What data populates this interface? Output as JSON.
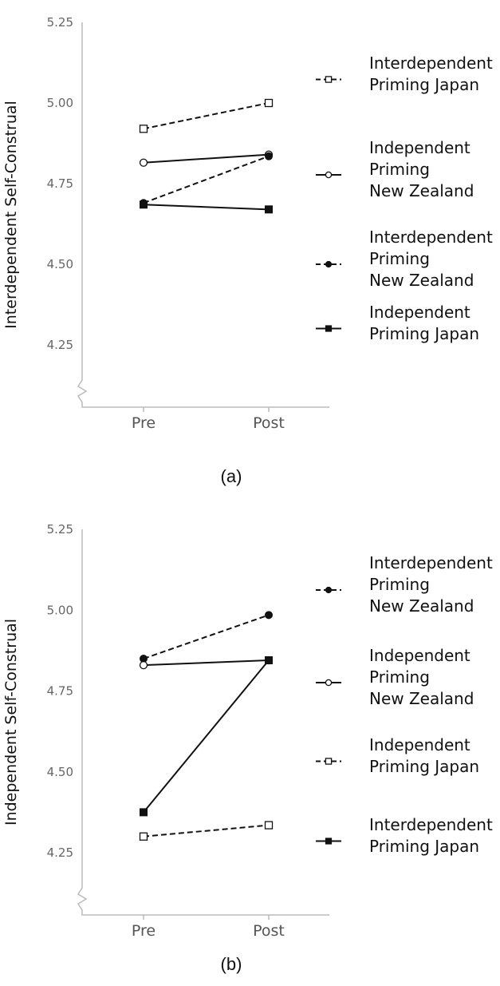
{
  "chart_data": [
    {
      "type": "line",
      "caption": "(a)",
      "ylabel": "Interdependent Self-Construal",
      "xlabel": "",
      "categories": [
        "Pre",
        "Post"
      ],
      "yticks": [
        "5.25",
        "5.00",
        "4.75",
        "4.50",
        "4.25"
      ],
      "ylim": [
        4.1,
        5.25
      ],
      "axis_break": true,
      "grid": false,
      "legend_position": "right",
      "series": [
        {
          "name": "Interdependent\nPriming Japan",
          "values": [
            4.92,
            5.0
          ],
          "dash": true,
          "marker": "square-open"
        },
        {
          "name": "Independent\nPriming\nNew Zealand",
          "values": [
            4.815,
            4.84
          ],
          "dash": false,
          "marker": "circle-open"
        },
        {
          "name": "Interdependent\nPriming\nNew Zealand",
          "values": [
            4.69,
            4.835
          ],
          "dash": true,
          "marker": "circle-filled"
        },
        {
          "name": "Independent\nPriming Japan",
          "values": [
            4.685,
            4.67
          ],
          "dash": false,
          "marker": "square-filled"
        }
      ]
    },
    {
      "type": "line",
      "caption": "(b)",
      "ylabel": "Independent Self-Construal",
      "xlabel": "",
      "categories": [
        "Pre",
        "Post"
      ],
      "yticks": [
        "5.25",
        "5.00",
        "4.75",
        "4.50",
        "4.25"
      ],
      "ylim": [
        4.1,
        5.25
      ],
      "axis_break": true,
      "grid": false,
      "legend_position": "right",
      "series": [
        {
          "name": "Interdependent\nPriming\nNew Zealand",
          "values": [
            4.85,
            4.985
          ],
          "dash": true,
          "marker": "circle-filled"
        },
        {
          "name": "Independent\nPriming\nNew Zealand",
          "values": [
            4.83,
            4.845
          ],
          "dash": false,
          "marker": "circle-open"
        },
        {
          "name": "Independent\nPriming Japan",
          "values": [
            4.3,
            4.335
          ],
          "dash": true,
          "marker": "square-open"
        },
        {
          "name": "Interdependent\nPriming Japan",
          "values": [
            4.375,
            4.845
          ],
          "dash": false,
          "marker": "square-filled"
        }
      ]
    }
  ]
}
